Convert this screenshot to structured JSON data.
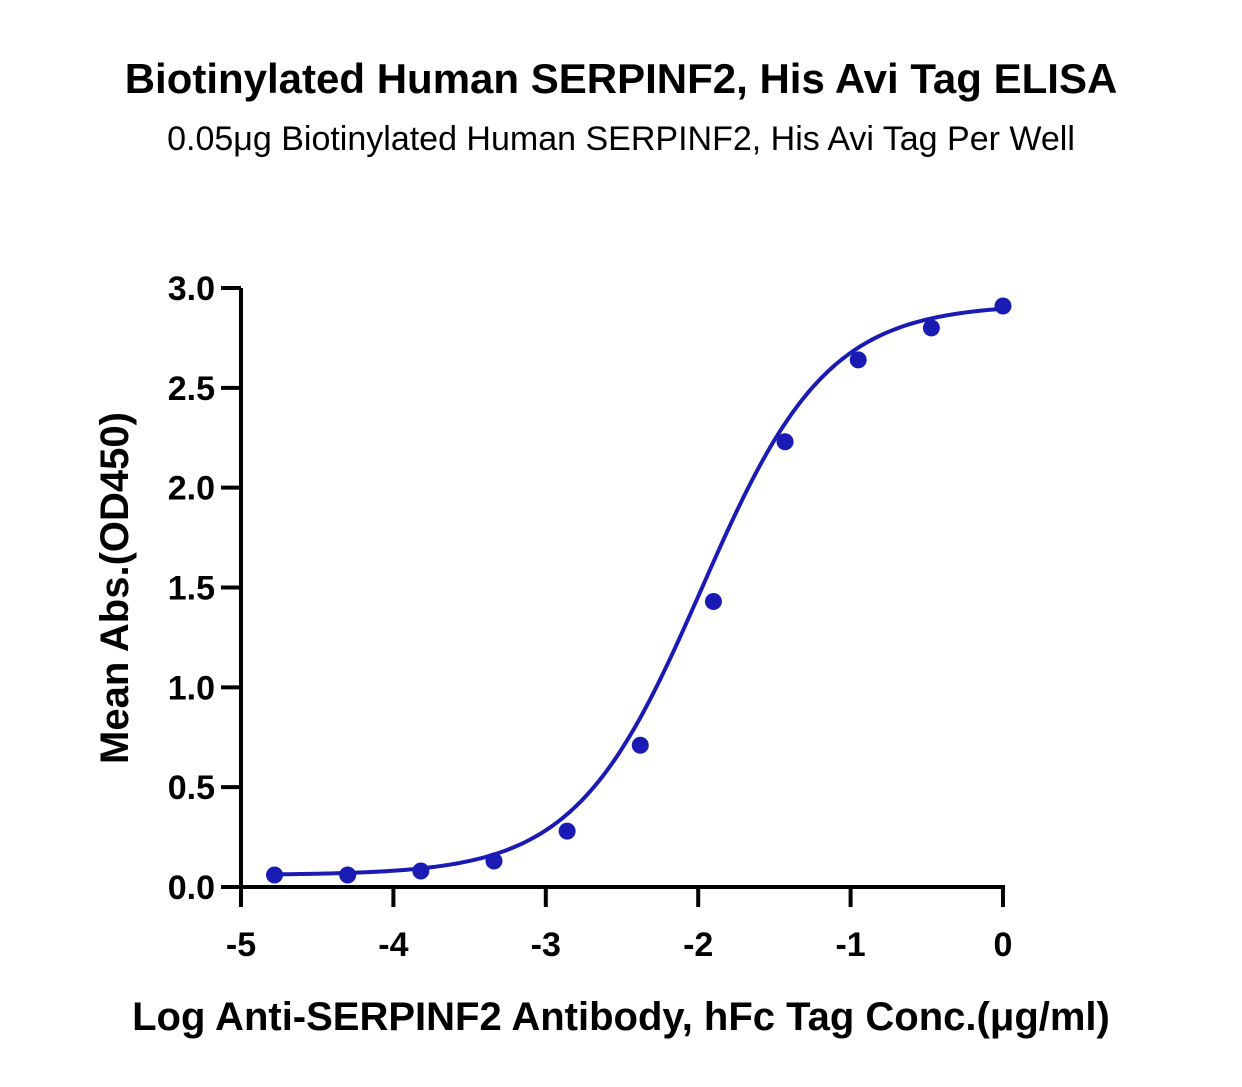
{
  "chart_data": {
    "type": "scatter",
    "title": "Biotinylated Human SERPINF2, His Avi Tag ELISA",
    "subtitle": "0.05μg Biotinylated Human SERPINF2, His Avi Tag Per Well",
    "xlabel": "Log Anti-SERPINF2 Antibody, hFc Tag Conc.(μg/ml)",
    "ylabel": "Mean Abs.(OD450)",
    "xlim": [
      -5,
      0
    ],
    "ylim": [
      0,
      3.0
    ],
    "x_ticks": [
      -5,
      -4,
      -3,
      -2,
      -1,
      0
    ],
    "x_tick_labels": [
      "-5",
      "-4",
      "-3",
      "-2",
      "-1",
      "0"
    ],
    "y_ticks": [
      0,
      0.5,
      1.0,
      1.5,
      2.0,
      2.5,
      3.0
    ],
    "y_tick_labels": [
      "0.0",
      "0.5",
      "1.0",
      "1.5",
      "2.0",
      "2.5",
      "3.0"
    ],
    "grid": false,
    "color": "#1a1ab4",
    "series": [
      {
        "x": [
          -4.78,
          -4.3,
          -3.82,
          -3.34,
          -2.86,
          -2.38,
          -1.9,
          -1.43,
          -0.95,
          -0.47,
          0.0
        ],
        "y": [
          0.06,
          0.06,
          0.08,
          0.13,
          0.28,
          0.71,
          1.43,
          2.23,
          2.64,
          2.8,
          2.91
        ],
        "fit": "4PL sigmoid"
      }
    ]
  }
}
